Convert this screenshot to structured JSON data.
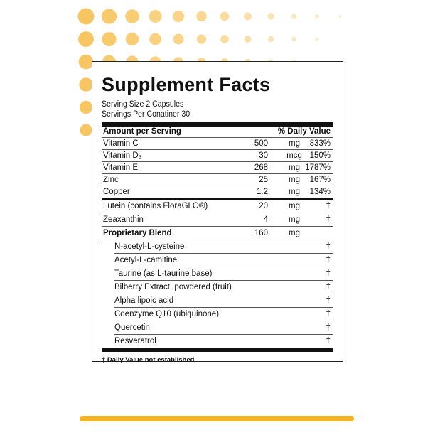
{
  "title": "Supplement Facts",
  "serving_size": "Serving Size 2 Capsules",
  "servings_per_container": "Servings Per Conatiner 30",
  "header": {
    "amount": "Amount per Serving",
    "dv": "% Daily Value"
  },
  "vitamins": [
    {
      "name": "Vitamin C",
      "amount": "500",
      "unit": "mg",
      "dv": "833%"
    },
    {
      "name": "Vitamin D₃",
      "amount": "30",
      "unit": "mcg",
      "dv": "150%"
    },
    {
      "name": "Vitamin E",
      "amount": "268",
      "unit": "mg",
      "dv": "1787%"
    },
    {
      "name": "Zinc",
      "amount": "25",
      "unit": "mg",
      "dv": "167%"
    },
    {
      "name": "Copper",
      "amount": "1.2",
      "unit": "mg",
      "dv": "134%"
    }
  ],
  "others": [
    {
      "name": "Lutein (contains FloraGLO®)",
      "amount": "20",
      "unit": "mg",
      "dv": "†"
    },
    {
      "name": "Zeaxanthin",
      "amount": "4",
      "unit": "mg",
      "dv": "†"
    },
    {
      "name": "Proprietary Blend",
      "amount": "160",
      "unit": "mg",
      "dv": ""
    }
  ],
  "blend": [
    {
      "name": "N-acetyl-L-cysteine",
      "dv": "†"
    },
    {
      "name": "Acetyl-L-camitine",
      "dv": "†"
    },
    {
      "name": "Taurine (as L-taurine base)",
      "dv": "†"
    },
    {
      "name": "Bilberry Extract, powdered (fruit)",
      "dv": "†"
    },
    {
      "name": "Alpha lipoic acid",
      "dv": "†"
    },
    {
      "name": "Coenzyme Q10 (ubiquinone)",
      "dv": "†"
    },
    {
      "name": "Quercetin",
      "dv": "†"
    },
    {
      "name": "Resveratrol",
      "dv": "†"
    }
  ],
  "footnote": "† Daily Value not established",
  "colors": {
    "accent": "#f4b324",
    "dots": "#f7c35a"
  }
}
